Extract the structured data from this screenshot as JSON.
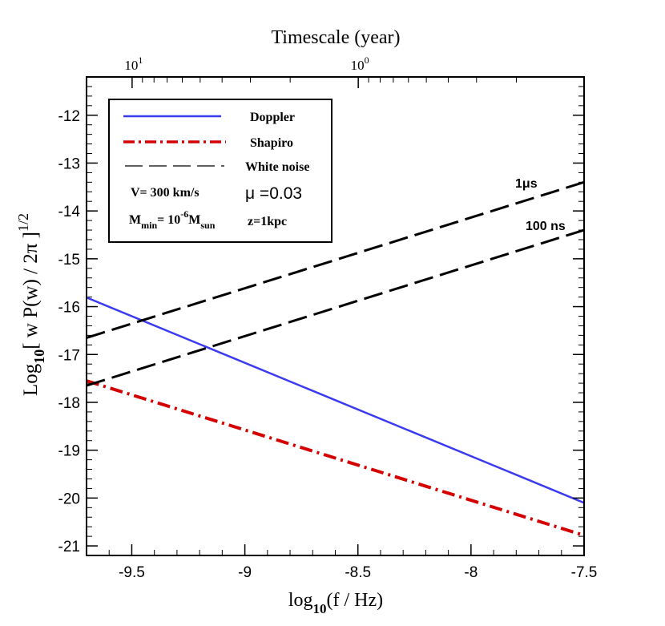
{
  "chart_data": {
    "type": "line",
    "title": "Timescale (year)",
    "xlabel": "log10(f / Hz)",
    "xlabel_main": "log",
    "xlabel_sub": "10",
    "xlabel_rest": "(f / Hz)",
    "ylabel": "Log10[ w P(w) / 2π ]^1/2",
    "ylabel_main": "Log",
    "ylabel_sub": "10",
    "ylabel_rest": "[ w P(w) / 2π ]",
    "ylabel_sup": "1/2",
    "xlim": [
      -9.7,
      -7.5
    ],
    "ylim": [
      -21.2,
      -11.2
    ],
    "x_ticks": [
      -9.5,
      -9,
      -8.5,
      -8,
      -7.5
    ],
    "x_tick_labels": [
      "-9.5",
      "-9",
      "-8.5",
      "-8",
      "-7.5"
    ],
    "y_ticks": [
      -21,
      -20,
      -19,
      -18,
      -17,
      -16,
      -15,
      -14,
      -13,
      -12
    ],
    "y_tick_labels": [
      "-21",
      "-20",
      "-19",
      "-18",
      "-17",
      "-16",
      "-15",
      "-14",
      "-13",
      "-12"
    ],
    "top_axis": {
      "ticks": [
        {
          "base": "10",
          "exp": "1",
          "x": -9.4985
        },
        {
          "base": "10",
          "exp": "0",
          "x": -8.4985
        }
      ]
    },
    "series": [
      {
        "name": "Doppler",
        "style": "solid",
        "color": "#3a3af0",
        "x": [
          -9.7,
          -7.5
        ],
        "y": [
          -15.81,
          -20.1
        ]
      },
      {
        "name": "Shapiro",
        "style": "dashdot",
        "color": "#d40000",
        "x": [
          -9.7,
          -7.5
        ],
        "y": [
          -17.55,
          -20.78
        ]
      },
      {
        "name": "1μs",
        "style": "dashed",
        "color": "#000000",
        "x": [
          -9.7,
          -7.5
        ],
        "y": [
          -16.65,
          -13.4
        ]
      },
      {
        "name": "100 ns",
        "style": "dashed",
        "color": "#000000",
        "x": [
          -9.7,
          -7.5
        ],
        "y": [
          -17.65,
          -14.4
        ]
      }
    ],
    "line_labels": [
      {
        "text": "1μs",
        "series": "1μs"
      },
      {
        "text": "100 ns",
        "series": "100 ns"
      }
    ],
    "legend": {
      "placement": "top-left",
      "entries": [
        {
          "label": "Doppler",
          "style": "solid",
          "color": "#3a3af0"
        },
        {
          "label": "Shapiro",
          "style": "dashdot",
          "color": "#d40000"
        },
        {
          "label": "White noise",
          "style": "dashed",
          "color": "#000000"
        }
      ],
      "params": {
        "velocity": "V= 300 km/s",
        "mu": "μ =0.03",
        "mmin_main": "M",
        "mmin_sub": "min",
        "mmin_eq": "= 10",
        "mmin_exp": "-6",
        "msun_main": "M",
        "msun_sub": "sun",
        "distance": "z=1kpc"
      }
    }
  }
}
